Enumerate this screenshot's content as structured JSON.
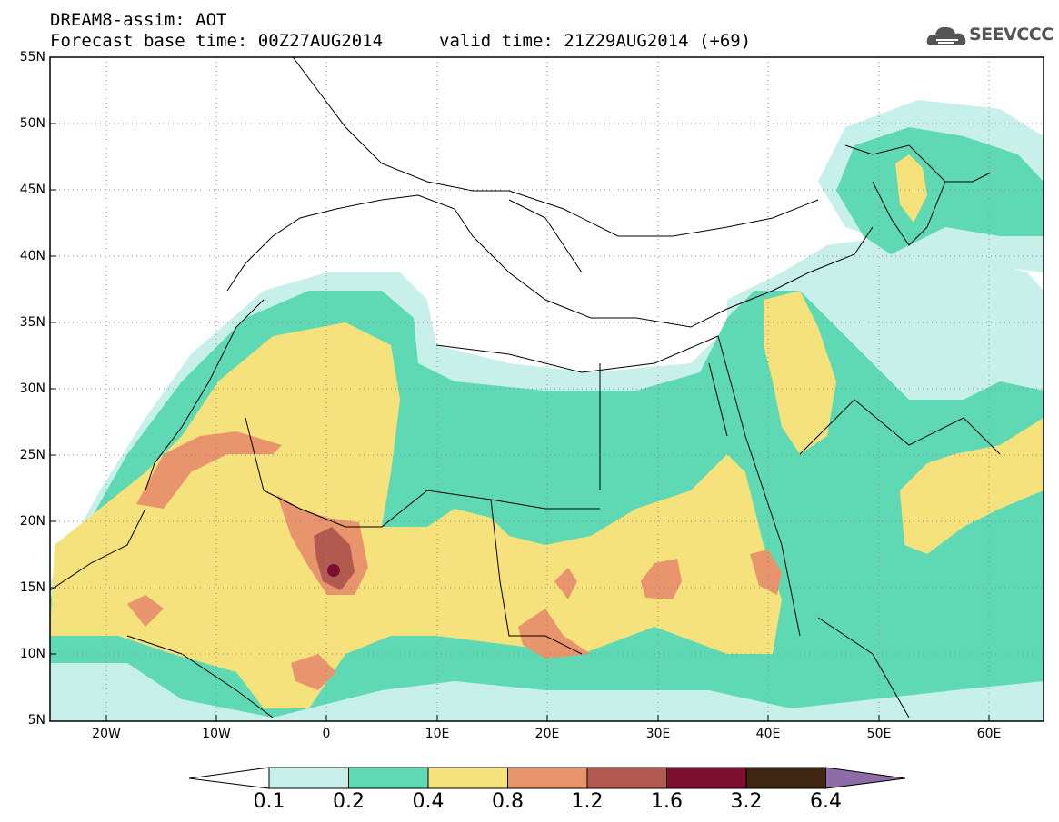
{
  "header": {
    "title_line1": "DREAM8-assim: AOT",
    "title_line2": "Forecast base time: 00Z27AUG2014",
    "valid_time": "valid time: 21Z29AUG2014 (+69)"
  },
  "logo": {
    "text": "SEEVCCC",
    "icon": "cloud-icon"
  },
  "axes": {
    "lat_labels": [
      "55N",
      "50N",
      "45N",
      "40N",
      "35N",
      "30N",
      "25N",
      "20N",
      "15N",
      "10N",
      "5N"
    ],
    "lon_labels": [
      "20W",
      "10W",
      "0",
      "10E",
      "20E",
      "30E",
      "40E",
      "50E",
      "60E"
    ],
    "lat_range": [
      5,
      55
    ],
    "lon_range": [
      -25,
      65
    ]
  },
  "colorbar": {
    "levels": [
      "0.1",
      "0.2",
      "0.4",
      "0.8",
      "1.2",
      "1.6",
      "3.2",
      "6.4"
    ],
    "colors": [
      "#c7f0ea",
      "#5fd9b4",
      "#f5e27c",
      "#e8946c",
      "#b35a50",
      "#7d0f33",
      "#3e2613"
    ],
    "overflow_low_color": "#ffffff",
    "overflow_high_color": "#8e6ca6"
  }
}
